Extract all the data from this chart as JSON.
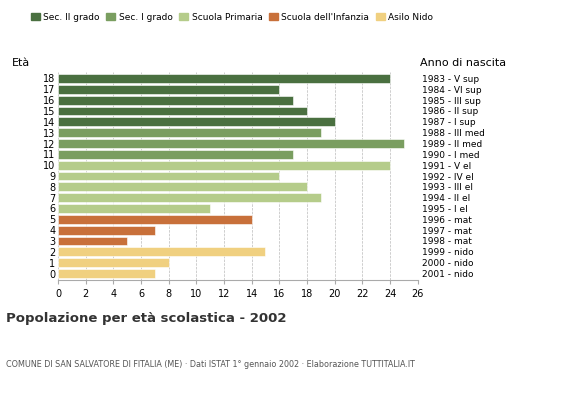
{
  "ages": [
    18,
    17,
    16,
    15,
    14,
    13,
    12,
    11,
    10,
    9,
    8,
    7,
    6,
    5,
    4,
    3,
    2,
    1,
    0
  ],
  "values": [
    24,
    16,
    17,
    18,
    20,
    19,
    25,
    17,
    24,
    16,
    18,
    19,
    11,
    14,
    7,
    5,
    15,
    8,
    7
  ],
  "right_labels": [
    "1983 - V sup",
    "1984 - VI sup",
    "1985 - III sup",
    "1986 - II sup",
    "1987 - I sup",
    "1988 - III med",
    "1989 - II med",
    "1990 - I med",
    "1991 - V el",
    "1992 - IV el",
    "1993 - III el",
    "1994 - II el",
    "1995 - I el",
    "1996 - mat",
    "1997 - mat",
    "1998 - mat",
    "1999 - nido",
    "2000 - nido",
    "2001 - nido"
  ],
  "bar_colors": [
    "#4a7040",
    "#4a7040",
    "#4a7040",
    "#4a7040",
    "#4a7040",
    "#7a9e60",
    "#7a9e60",
    "#7a9e60",
    "#b5cc8a",
    "#b5cc8a",
    "#b5cc8a",
    "#b5cc8a",
    "#b5cc8a",
    "#c8703a",
    "#c8703a",
    "#c8703a",
    "#f0d080",
    "#f0d080",
    "#f0d080"
  ],
  "legend_labels": [
    "Sec. II grado",
    "Sec. I grado",
    "Scuola Primaria",
    "Scuola dell'Infanzia",
    "Asilo Nido"
  ],
  "legend_colors": [
    "#4a7040",
    "#7a9e60",
    "#b5cc8a",
    "#c8703a",
    "#f0d080"
  ],
  "title": "Popolazione per età scolastica - 2002",
  "subtitle": "COMUNE DI SAN SALVATORE DI FITALIA (ME) · Dati ISTAT 1° gennaio 2002 · Elaborazione TUTTITALIA.IT",
  "eta_label": "Età",
  "anno_label": "Anno di nascita",
  "xlim": [
    0,
    26
  ],
  "xticks": [
    0,
    2,
    4,
    6,
    8,
    10,
    12,
    14,
    16,
    18,
    20,
    22,
    24,
    26
  ],
  "background_color": "#ffffff",
  "grid_color": "#aaaaaa"
}
